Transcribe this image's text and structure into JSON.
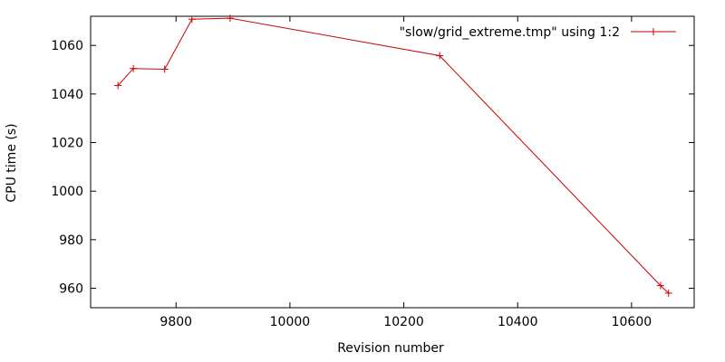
{
  "chart_data": {
    "type": "line",
    "title": "",
    "xlabel": "Revision number",
    "ylabel": "CPU time (s)",
    "xlim": [
      9650,
      10710
    ],
    "ylim": [
      952,
      1072
    ],
    "xticks": [
      9800,
      10000,
      10200,
      10400,
      10600
    ],
    "yticks": [
      960,
      980,
      1000,
      1020,
      1040,
      1060
    ],
    "grid": false,
    "legend_position": "top-right",
    "series": [
      {
        "name": "\"slow/grid_extreme.tmp\" using 1:2",
        "color": "#cc0000",
        "marker": "plus",
        "x": [
          9698,
          9725,
          9780,
          9828,
          9895,
          10263,
          10651,
          10665
        ],
        "y": [
          1043.5,
          1050.5,
          1050.2,
          1070.8,
          1071.2,
          1055.8,
          961.1,
          958.0
        ]
      }
    ]
  }
}
